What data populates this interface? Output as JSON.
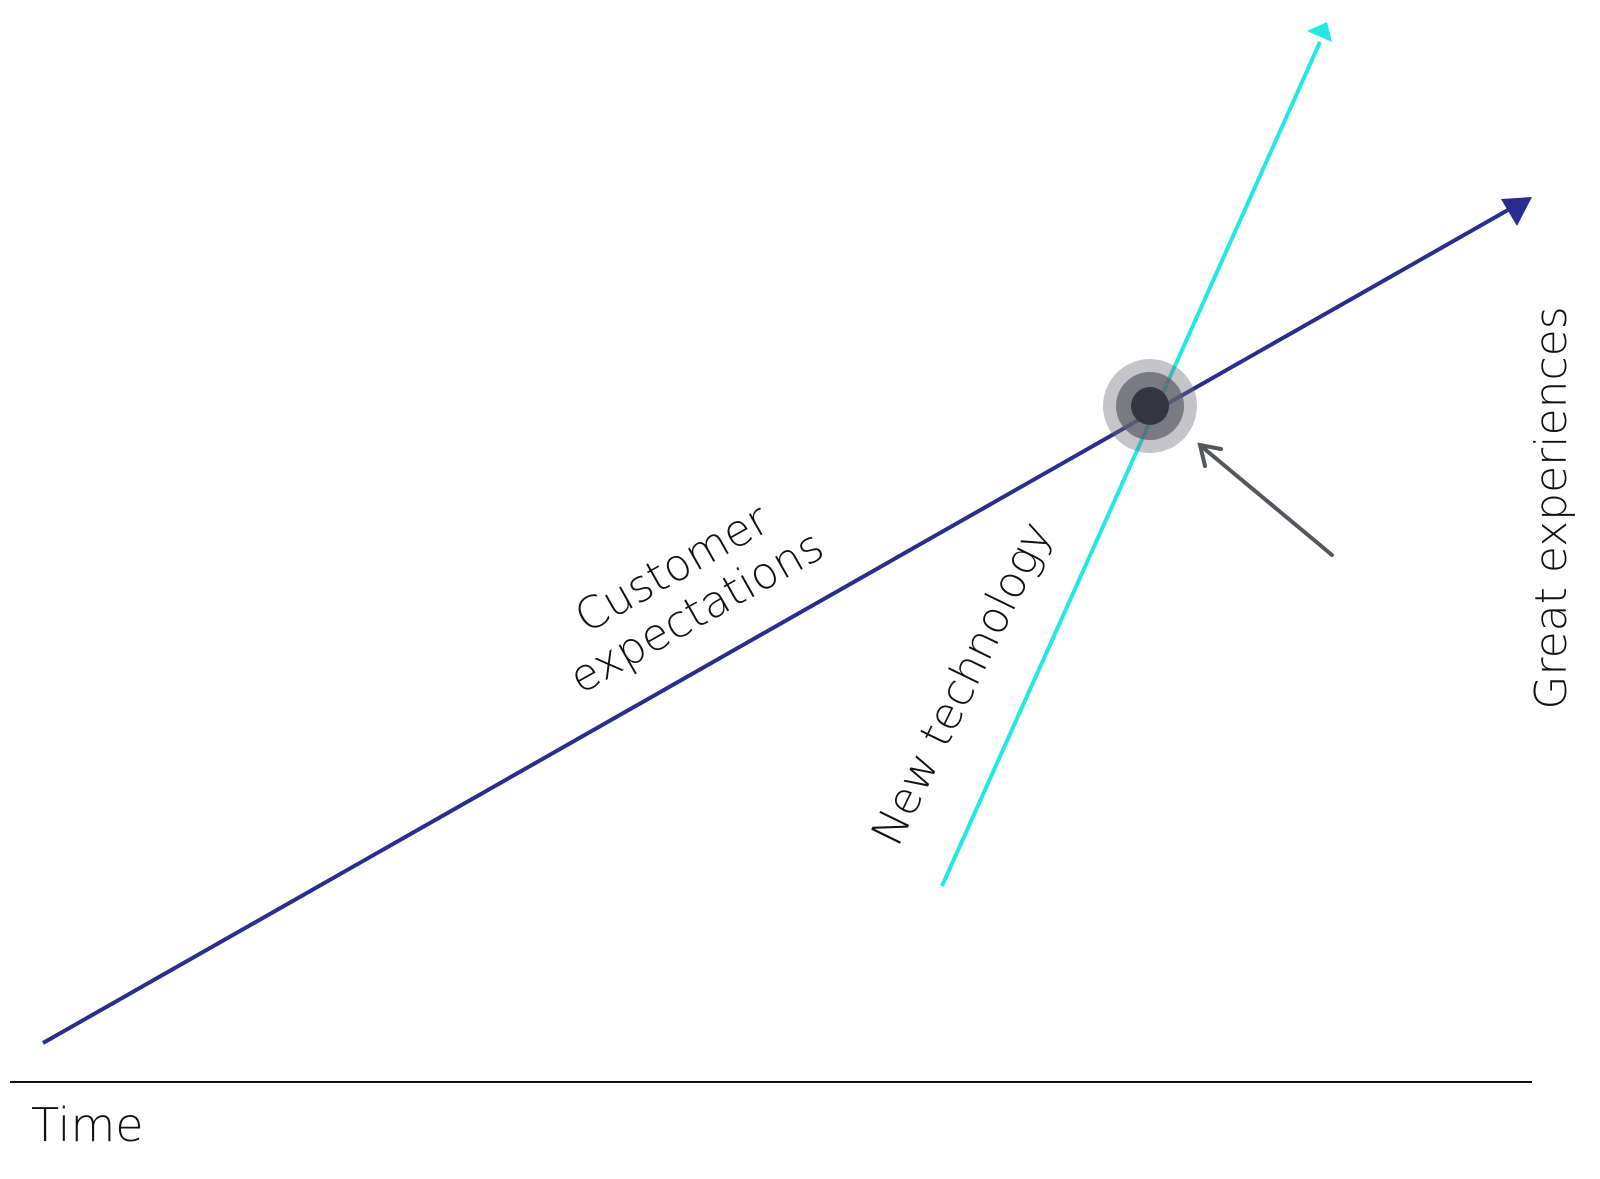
{
  "labels": {
    "x_axis": "Time",
    "y_axis": "Great experiences",
    "customer_line": [
      "Customer",
      "expectations"
    ],
    "technology_line": "New technology"
  },
  "colors": {
    "customer_expectations": "#2b2d8e",
    "new_technology": "#22e8e4",
    "axis": "#111111",
    "pointer_arrow": "#53565c",
    "intersection_outer": "#c5c5ca",
    "intersection_middle": "#75767f",
    "intersection_core": "#343541"
  }
}
